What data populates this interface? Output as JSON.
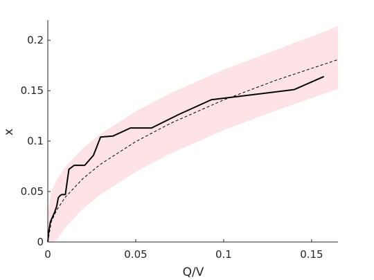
{
  "chart_data": {
    "type": "line",
    "title": "",
    "xlabel": "Q/V",
    "ylabel": "x",
    "xlim": [
      0,
      0.165
    ],
    "ylim": [
      0,
      0.22
    ],
    "grid": false,
    "legend": "none",
    "x_ticks": [
      0,
      0.05,
      0.1,
      0.15
    ],
    "y_ticks": [
      0,
      0.05,
      0.1,
      0.15,
      0.2
    ],
    "x_tick_labels": [
      "0",
      "0.05",
      "0.1",
      "0.15"
    ],
    "y_tick_labels": [
      "0",
      "0.05",
      "0.1",
      "0.15",
      "0.2"
    ],
    "colors": {
      "band": "#fde3e6",
      "line": "#000000",
      "fit": "#000000",
      "axis": "#262626"
    },
    "series": [
      {
        "style": "solid",
        "x": [
          0,
          0.0005,
          0.001,
          0.0015,
          0.002,
          0.003,
          0.004,
          0.005,
          0.006,
          0.007,
          0.008,
          0.009,
          0.01,
          0.012,
          0.015,
          0.018,
          0.021,
          0.026,
          0.03,
          0.037,
          0.047,
          0.059,
          0.074,
          0.093,
          0.14,
          0.157
        ],
        "y": [
          0,
          0.01,
          0.015,
          0.02,
          0.022,
          0.026,
          0.03,
          0.035,
          0.044,
          0.046,
          0.047,
          0.047,
          0.047,
          0.072,
          0.076,
          0.076,
          0.076,
          0.086,
          0.104,
          0.105,
          0.113,
          0.113,
          0.126,
          0.141,
          0.151,
          0.164
        ]
      },
      {
        "style": "dashed",
        "x": [
          0,
          0.002,
          0.005,
          0.01,
          0.02,
          0.03,
          0.05,
          0.07,
          0.1,
          0.13,
          0.165
        ],
        "y": [
          0,
          0.0199,
          0.0315,
          0.0445,
          0.0629,
          0.0771,
          0.0995,
          0.1178,
          0.1408,
          0.1605,
          0.1808
        ]
      }
    ],
    "band": {
      "x": [
        0,
        0.002,
        0.005,
        0.01,
        0.02,
        0.03,
        0.05,
        0.07,
        0.1,
        0.13,
        0.165
      ],
      "upper": [
        0.03,
        0.0499,
        0.0615,
        0.0745,
        0.0929,
        0.1071,
        0.1295,
        0.1478,
        0.1708,
        0.1905,
        0.2138
      ],
      "lower": [
        0,
        0,
        0.0015,
        0.0145,
        0.0329,
        0.0471,
        0.0695,
        0.0878,
        0.1108,
        0.1305,
        0.1518
      ]
    }
  }
}
